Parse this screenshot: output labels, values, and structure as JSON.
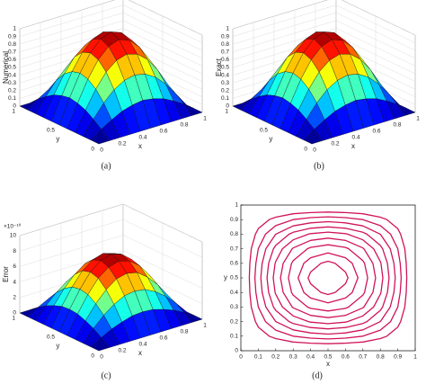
{
  "chart_data": [
    {
      "type": "surface",
      "caption": "(a)",
      "xlabel": "x",
      "ylabel": "y",
      "zlabel": "Numerical",
      "x": [
        0,
        0.1,
        0.2,
        0.3,
        0.4,
        0.5,
        0.6,
        0.7,
        0.8,
        0.9,
        1
      ],
      "y": [
        0,
        0.1,
        0.2,
        0.3,
        0.4,
        0.5,
        0.6,
        0.7,
        0.8,
        0.9,
        1
      ],
      "z": [
        [
          0,
          0,
          0,
          0,
          0,
          0,
          0,
          0,
          0,
          0,
          0
        ],
        [
          0,
          0.1,
          0.18,
          0.25,
          0.29,
          0.31,
          0.29,
          0.25,
          0.18,
          0.1,
          0
        ],
        [
          0,
          0.18,
          0.35,
          0.48,
          0.56,
          0.59,
          0.56,
          0.48,
          0.35,
          0.18,
          0
        ],
        [
          0,
          0.25,
          0.48,
          0.66,
          0.77,
          0.81,
          0.77,
          0.66,
          0.48,
          0.25,
          0
        ],
        [
          0,
          0.29,
          0.56,
          0.77,
          0.9,
          0.95,
          0.9,
          0.77,
          0.56,
          0.29,
          0
        ],
        [
          0,
          0.31,
          0.59,
          0.81,
          0.95,
          1,
          0.95,
          0.81,
          0.59,
          0.31,
          0
        ],
        [
          0,
          0.29,
          0.56,
          0.77,
          0.9,
          0.95,
          0.9,
          0.77,
          0.56,
          0.29,
          0
        ],
        [
          0,
          0.25,
          0.48,
          0.66,
          0.77,
          0.81,
          0.77,
          0.66,
          0.48,
          0.25,
          0
        ],
        [
          0,
          0.18,
          0.35,
          0.48,
          0.56,
          0.59,
          0.56,
          0.48,
          0.35,
          0.18,
          0
        ],
        [
          0,
          0.1,
          0.18,
          0.25,
          0.29,
          0.31,
          0.29,
          0.25,
          0.18,
          0.1,
          0
        ],
        [
          0,
          0,
          0,
          0,
          0,
          0,
          0,
          0,
          0,
          0,
          0
        ]
      ],
      "xlim": [
        0,
        1
      ],
      "ylim": [
        0,
        1
      ],
      "zlim": [
        0,
        1
      ],
      "xticks": [
        0,
        0.2,
        0.4,
        0.6,
        0.8,
        1
      ],
      "yticks": [
        0,
        0.5,
        1
      ],
      "zticks": [
        0,
        0.1,
        0.2,
        0.3,
        0.4,
        0.5,
        0.6,
        0.7,
        0.8,
        0.9,
        1
      ],
      "colormap": "jet"
    },
    {
      "type": "surface",
      "caption": "(b)",
      "xlabel": "x",
      "ylabel": "y",
      "zlabel": "Exact",
      "x": [
        0,
        0.1,
        0.2,
        0.3,
        0.4,
        0.5,
        0.6,
        0.7,
        0.8,
        0.9,
        1
      ],
      "y": [
        0,
        0.1,
        0.2,
        0.3,
        0.4,
        0.5,
        0.6,
        0.7,
        0.8,
        0.9,
        1
      ],
      "z": [
        [
          0,
          0,
          0,
          0,
          0,
          0,
          0,
          0,
          0,
          0,
          0
        ],
        [
          0,
          0.1,
          0.18,
          0.25,
          0.29,
          0.31,
          0.29,
          0.25,
          0.18,
          0.1,
          0
        ],
        [
          0,
          0.18,
          0.35,
          0.48,
          0.56,
          0.59,
          0.56,
          0.48,
          0.35,
          0.18,
          0
        ],
        [
          0,
          0.25,
          0.48,
          0.66,
          0.77,
          0.81,
          0.77,
          0.66,
          0.48,
          0.25,
          0
        ],
        [
          0,
          0.29,
          0.56,
          0.77,
          0.9,
          0.95,
          0.9,
          0.77,
          0.56,
          0.29,
          0
        ],
        [
          0,
          0.31,
          0.59,
          0.81,
          0.95,
          1,
          0.95,
          0.81,
          0.59,
          0.31,
          0
        ],
        [
          0,
          0.29,
          0.56,
          0.77,
          0.9,
          0.95,
          0.9,
          0.77,
          0.56,
          0.29,
          0
        ],
        [
          0,
          0.25,
          0.48,
          0.66,
          0.77,
          0.81,
          0.77,
          0.66,
          0.48,
          0.25,
          0
        ],
        [
          0,
          0.18,
          0.35,
          0.48,
          0.56,
          0.59,
          0.56,
          0.48,
          0.35,
          0.18,
          0
        ],
        [
          0,
          0.1,
          0.18,
          0.25,
          0.29,
          0.31,
          0.29,
          0.25,
          0.18,
          0.1,
          0
        ],
        [
          0,
          0,
          0,
          0,
          0,
          0,
          0,
          0,
          0,
          0,
          0
        ]
      ],
      "xlim": [
        0,
        1
      ],
      "ylim": [
        0,
        1
      ],
      "zlim": [
        0,
        1
      ],
      "xticks": [
        0,
        0.2,
        0.4,
        0.6,
        0.8,
        1
      ],
      "yticks": [
        0,
        0.5,
        1
      ],
      "zticks": [
        0,
        0.1,
        0.2,
        0.3,
        0.4,
        0.5,
        0.6,
        0.7,
        0.8,
        0.9,
        1
      ],
      "colormap": "jet"
    },
    {
      "type": "surface",
      "caption": "(c)",
      "xlabel": "x",
      "ylabel": "y",
      "zlabel": "Error",
      "zoffset": "×10⁻¹⁰",
      "x": [
        0,
        0.1,
        0.2,
        0.3,
        0.4,
        0.5,
        0.6,
        0.7,
        0.8,
        0.9,
        1
      ],
      "y": [
        0,
        0.1,
        0.2,
        0.3,
        0.4,
        0.5,
        0.6,
        0.7,
        0.8,
        0.9,
        1
      ],
      "z": [
        [
          0,
          0,
          0,
          0,
          0,
          0,
          0,
          0,
          0,
          0,
          0
        ],
        [
          0,
          0.8,
          1.5,
          2,
          2.4,
          2.5,
          2.4,
          2,
          1.5,
          0.8,
          0
        ],
        [
          0,
          1.5,
          2.8,
          3.8,
          4.5,
          4.7,
          4.5,
          3.8,
          2.8,
          1.5,
          0
        ],
        [
          0,
          2,
          3.8,
          5.2,
          6.2,
          6.5,
          6.2,
          5.2,
          3.8,
          2,
          0
        ],
        [
          0,
          2.4,
          4.5,
          6.2,
          7.2,
          7.6,
          7.2,
          6.2,
          4.5,
          2.4,
          0
        ],
        [
          0,
          2.5,
          4.7,
          6.5,
          7.6,
          8,
          7.6,
          6.5,
          4.7,
          2.5,
          0
        ],
        [
          0,
          2.4,
          4.5,
          6.2,
          7.2,
          7.6,
          7.2,
          6.2,
          4.5,
          2.4,
          0
        ],
        [
          0,
          2,
          3.8,
          5.2,
          6.2,
          6.5,
          6.2,
          5.2,
          3.8,
          2,
          0
        ],
        [
          0,
          1.5,
          2.8,
          3.8,
          4.5,
          4.7,
          4.5,
          3.8,
          2.8,
          1.5,
          0
        ],
        [
          0,
          0.8,
          1.5,
          2,
          2.4,
          2.5,
          2.4,
          2,
          1.5,
          0.8,
          0
        ],
        [
          0,
          0,
          0,
          0,
          0,
          0,
          0,
          0,
          0,
          0,
          0
        ]
      ],
      "xlim": [
        0,
        1
      ],
      "ylim": [
        0,
        1
      ],
      "zlim": [
        0,
        10
      ],
      "xticks": [
        0,
        0.2,
        0.4,
        0.6,
        0.8,
        1
      ],
      "yticks": [
        0,
        0.5,
        1
      ],
      "zticks": [
        0,
        2,
        4,
        6,
        8,
        10
      ],
      "colormap": "jet"
    },
    {
      "type": "contour",
      "caption": "(d)",
      "xlabel": "x",
      "ylabel": "y",
      "color": "#d0145a",
      "x": [
        0,
        0.1,
        0.2,
        0.3,
        0.4,
        0.5,
        0.6,
        0.7,
        0.8,
        0.9,
        1
      ],
      "y": [
        0,
        0.1,
        0.2,
        0.3,
        0.4,
        0.5,
        0.6,
        0.7,
        0.8,
        0.9,
        1
      ],
      "z": [
        [
          0,
          0,
          0,
          0,
          0,
          0,
          0,
          0,
          0,
          0,
          0
        ],
        [
          0,
          0.1,
          0.18,
          0.25,
          0.29,
          0.31,
          0.29,
          0.25,
          0.18,
          0.1,
          0
        ],
        [
          0,
          0.18,
          0.35,
          0.48,
          0.56,
          0.59,
          0.56,
          0.48,
          0.35,
          0.18,
          0
        ],
        [
          0,
          0.25,
          0.48,
          0.66,
          0.77,
          0.81,
          0.77,
          0.66,
          0.48,
          0.25,
          0
        ],
        [
          0,
          0.29,
          0.56,
          0.77,
          0.9,
          0.95,
          0.9,
          0.77,
          0.56,
          0.29,
          0
        ],
        [
          0,
          0.31,
          0.59,
          0.81,
          0.95,
          1,
          0.95,
          0.81,
          0.59,
          0.31,
          0
        ],
        [
          0,
          0.29,
          0.56,
          0.77,
          0.9,
          0.95,
          0.9,
          0.77,
          0.56,
          0.29,
          0
        ],
        [
          0,
          0.25,
          0.48,
          0.66,
          0.77,
          0.81,
          0.77,
          0.66,
          0.48,
          0.25,
          0
        ],
        [
          0,
          0.18,
          0.35,
          0.48,
          0.56,
          0.59,
          0.56,
          0.48,
          0.35,
          0.18,
          0
        ],
        [
          0,
          0.1,
          0.18,
          0.25,
          0.29,
          0.31,
          0.29,
          0.25,
          0.18,
          0.1,
          0
        ],
        [
          0,
          0,
          0,
          0,
          0,
          0,
          0,
          0,
          0,
          0,
          0
        ]
      ],
      "levels": [
        0.15,
        0.25,
        0.35,
        0.45,
        0.55,
        0.65,
        0.75,
        0.85,
        0.93
      ],
      "xlim": [
        0,
        1
      ],
      "ylim": [
        0,
        1
      ],
      "xticks": [
        0,
        0.1,
        0.2,
        0.3,
        0.4,
        0.5,
        0.6,
        0.7,
        0.8,
        0.9,
        1
      ],
      "yticks": [
        0,
        0.1,
        0.2,
        0.3,
        0.4,
        0.5,
        0.6,
        0.7,
        0.8,
        0.9,
        1
      ]
    }
  ]
}
